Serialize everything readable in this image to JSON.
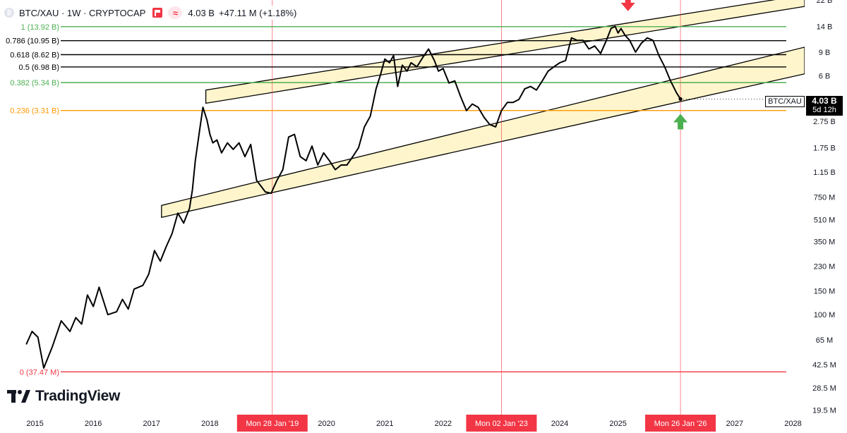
{
  "header": {
    "title": "BTC/XAU · 1W · CRYPTOCAP",
    "last": "4.03 B",
    "change": "+47.11 M (+1.18%)",
    "logo_icon": "bitcoin-logo-icon",
    "flag_icon": "red-flag-icon",
    "approx_icon": "approx-icon"
  },
  "price_badge": {
    "ticker": "BTC/XAU",
    "value": "4.03 B",
    "countdown": "5d 12h"
  },
  "watermark": {
    "brand": "TradingView"
  },
  "colors": {
    "price_line": "#000000",
    "fib_green": "#4caf50",
    "fib_black": "#000000",
    "fib_orange": "#ff9800",
    "fib_red": "#f23645",
    "channel_fill": "#fff5cc",
    "date_marker": "#f23645",
    "arrow_down": "#f23645",
    "arrow_up": "#4caf50"
  },
  "chart_data": {
    "type": "line",
    "title": "BTC/XAU",
    "y_scale": "log",
    "ylim": [
      18000000,
      22000000000
    ],
    "xlim": [
      2014.4,
      2028.2
    ],
    "grid": false,
    "x_ticks": [
      "2015",
      "2016",
      "2017",
      "2018",
      "2020",
      "2021",
      "2022",
      "2024",
      "2025",
      "2027",
      "2028"
    ],
    "x_tick_values": [
      2015.0,
      2016.0,
      2017.0,
      2018.0,
      2020.0,
      2021.0,
      2022.0,
      2024.0,
      2025.0,
      2027.0,
      2028.0
    ],
    "y_ticks": [
      {
        "label": "22 B",
        "value": 22000000000
      },
      {
        "label": "14 B",
        "value": 14000000000
      },
      {
        "label": "9 B",
        "value": 9000000000
      },
      {
        "label": "6 B",
        "value": 6000000000
      },
      {
        "label": "2.75 B",
        "value": 2750000000
      },
      {
        "label": "1.75 B",
        "value": 1750000000
      },
      {
        "label": "1.15 B",
        "value": 1150000000
      },
      {
        "label": "750 M",
        "value": 750000000
      },
      {
        "label": "510 M",
        "value": 510000000
      },
      {
        "label": "350 M",
        "value": 350000000
      },
      {
        "label": "230 M",
        "value": 230000000
      },
      {
        "label": "150 M",
        "value": 150000000
      },
      {
        "label": "100 M",
        "value": 100000000
      },
      {
        "label": "65 M",
        "value": 65000000
      },
      {
        "label": "42.5 M",
        "value": 42500000
      },
      {
        "label": "28.5 M",
        "value": 28500000
      },
      {
        "label": "19.5 M",
        "value": 19500000
      }
    ],
    "fib_levels": [
      {
        "label": "1 (13.92 B)",
        "value": 13920000000,
        "color": "#4caf50"
      },
      {
        "label": "0.786 (10.95 B)",
        "value": 10950000000,
        "color": "#000000"
      },
      {
        "label": "0.618 (8.62 B)",
        "value": 8620000000,
        "color": "#000000"
      },
      {
        "label": "0.5 (6.98 B)",
        "value": 6980000000,
        "color": "#000000"
      },
      {
        "label": "0.382 (5.34 B)",
        "value": 5340000000,
        "color": "#4caf50"
      },
      {
        "label": "0.236 (3.31 B)",
        "value": 3310000000,
        "color": "#ff9800"
      },
      {
        "label": "0 (37.47 M)",
        "value": 37470000,
        "color": "#f23645"
      }
    ],
    "date_markers": [
      {
        "label": "Mon 28 Jan '19",
        "x": 2019.07
      },
      {
        "label": "Mon 02 Jan '23",
        "x": 2023.0
      },
      {
        "label": "Mon 26 Jan '26",
        "x": 2026.07
      }
    ],
    "channels": [
      {
        "name": "upper",
        "x": [
          2017.93,
          2028.2
        ],
        "y_low": [
          3750000000,
          19700000000
        ],
        "y_high": [
          4700000000,
          24000000000
        ]
      },
      {
        "name": "lower",
        "x": [
          2017.17,
          2028.2
        ],
        "y_low": [
          530000000,
          6200000000
        ],
        "y_high": [
          650000000,
          9800000000
        ]
      }
    ],
    "arrows": [
      {
        "direction": "down",
        "x": 2025.17,
        "y": 21000000000,
        "color": "#f23645"
      },
      {
        "direction": "up",
        "x": 2026.07,
        "y": 2700000000,
        "color": "#4caf50"
      }
    ],
    "series": [
      {
        "x": [
          2014.85,
          2014.95,
          2015.05,
          2015.15,
          2015.3,
          2015.45,
          2015.6,
          2015.7,
          2015.8,
          2015.9,
          2016.0,
          2016.1,
          2016.25,
          2016.4,
          2016.5,
          2016.6,
          2016.7,
          2016.85,
          2016.95,
          2017.05,
          2017.15,
          2017.25,
          2017.35,
          2017.45,
          2017.55,
          2017.65,
          2017.7,
          2017.75,
          2017.82,
          2017.88,
          2017.95,
          2018.0,
          2018.05,
          2018.12,
          2018.2,
          2018.3,
          2018.4,
          2018.5,
          2018.6,
          2018.7,
          2018.8,
          2018.88,
          2018.95,
          2019.05,
          2019.15,
          2019.25,
          2019.35,
          2019.45,
          2019.55,
          2019.65,
          2019.75,
          2019.85,
          2019.95,
          2020.05,
          2020.15,
          2020.25,
          2020.35,
          2020.45,
          2020.55,
          2020.65,
          2020.75,
          2020.85,
          2020.92,
          2021.0,
          2021.08,
          2021.15,
          2021.22,
          2021.3,
          2021.38,
          2021.45,
          2021.55,
          2021.65,
          2021.75,
          2021.85,
          2021.92,
          2022.0,
          2022.1,
          2022.2,
          2022.3,
          2022.4,
          2022.5,
          2022.6,
          2022.7,
          2022.8,
          2022.9,
          2023.0,
          2023.1,
          2023.2,
          2023.3,
          2023.4,
          2023.5,
          2023.6,
          2023.7,
          2023.8,
          2023.9,
          2024.0,
          2024.1,
          2024.2,
          2024.3,
          2024.4,
          2024.5,
          2024.6,
          2024.7,
          2024.8,
          2024.88,
          2024.95,
          2025.0,
          2025.05,
          2025.12,
          2025.2,
          2025.3,
          2025.4,
          2025.5,
          2025.6,
          2025.7,
          2025.8,
          2025.9,
          2026.0,
          2026.07
        ],
        "values": [
          60000000,
          75000000,
          68000000,
          40000000,
          58000000,
          90000000,
          75000000,
          95000000,
          85000000,
          140000000,
          115000000,
          160000000,
          100000000,
          105000000,
          130000000,
          110000000,
          155000000,
          165000000,
          200000000,
          300000000,
          250000000,
          320000000,
          400000000,
          570000000,
          480000000,
          620000000,
          850000000,
          1400000000,
          2300000000,
          3500000000,
          2800000000,
          2200000000,
          1900000000,
          2000000000,
          1600000000,
          1900000000,
          1700000000,
          1900000000,
          1500000000,
          1850000000,
          1000000000,
          900000000,
          820000000,
          800000000,
          1000000000,
          1200000000,
          2100000000,
          2200000000,
          1500000000,
          1400000000,
          1800000000,
          1300000000,
          1600000000,
          1400000000,
          1200000000,
          1300000000,
          1300000000,
          1500000000,
          1750000000,
          2500000000,
          3000000000,
          4800000000,
          6000000000,
          8000000000,
          7500000000,
          8500000000,
          5000000000,
          7200000000,
          6500000000,
          7500000000,
          7000000000,
          8200000000,
          9500000000,
          7800000000,
          6500000000,
          6800000000,
          5300000000,
          5500000000,
          4200000000,
          3300000000,
          3700000000,
          3500000000,
          2950000000,
          2600000000,
          2500000000,
          3300000000,
          3800000000,
          3800000000,
          4000000000,
          4800000000,
          5000000000,
          4700000000,
          5500000000,
          6500000000,
          7000000000,
          7500000000,
          7800000000,
          11500000000,
          11000000000,
          11000000000,
          9500000000,
          10000000000,
          8800000000,
          11000000000,
          13500000000,
          14000000000,
          12500000000,
          13500000000,
          12000000000,
          11000000000,
          9000000000,
          10500000000,
          11500000000,
          11000000000,
          8500000000,
          7000000000,
          5500000000,
          4500000000,
          4030000000
        ]
      }
    ]
  }
}
